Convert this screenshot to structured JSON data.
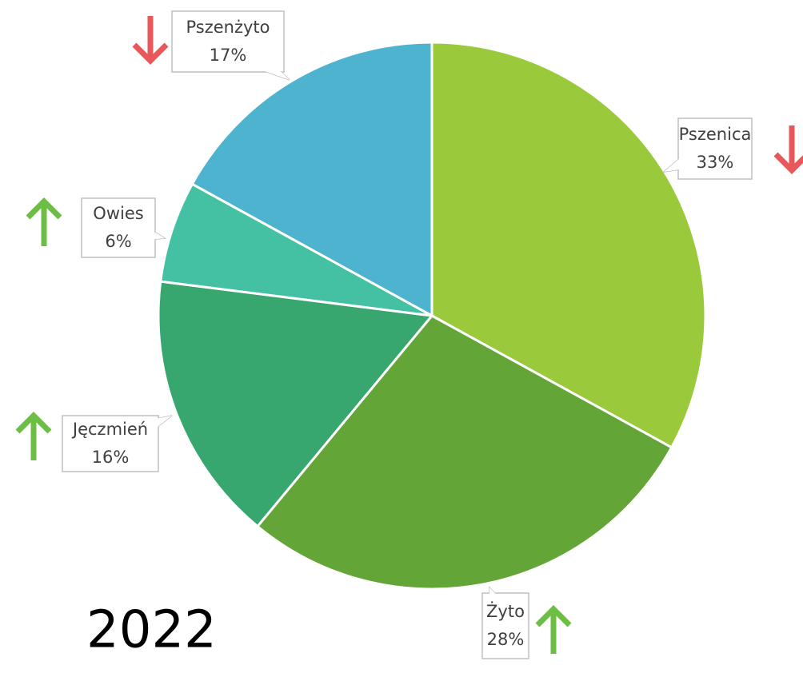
{
  "chart_data": {
    "type": "pie",
    "title": "2022",
    "categories": [
      "Pszenica",
      "Żyto",
      "Jęczmień",
      "Owies",
      "Pszenżyto"
    ],
    "values": [
      33,
      28,
      16,
      6,
      17
    ],
    "value_labels": [
      "33%",
      "28%",
      "16%",
      "6%",
      "17%"
    ],
    "colors": [
      "#9ACA3C",
      "#63A537",
      "#37A76F",
      "#44C1A3",
      "#4EB3CF"
    ],
    "trends": [
      "down",
      "up",
      "up",
      "up",
      "down"
    ]
  }
}
